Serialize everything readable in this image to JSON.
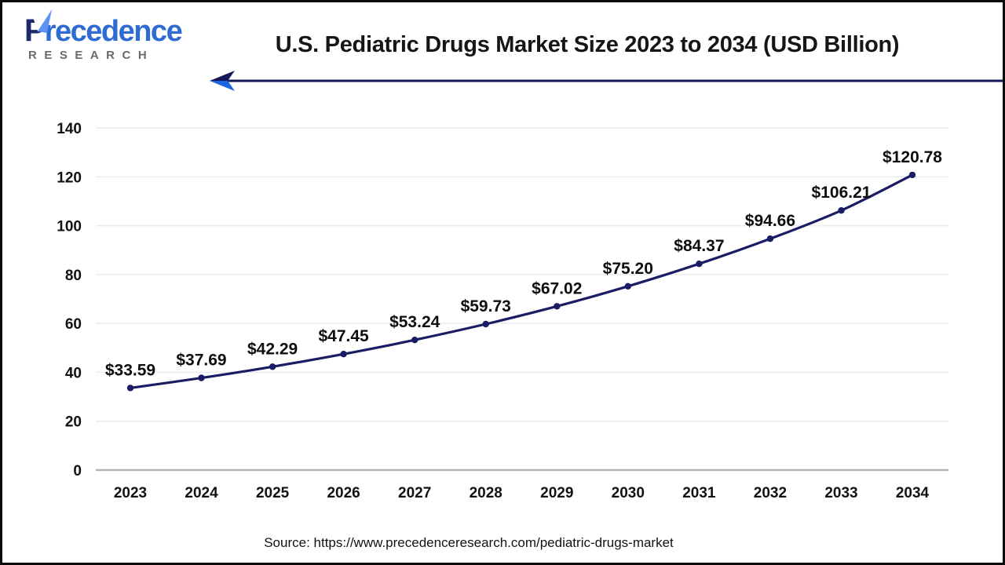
{
  "header": {
    "title": "U.S. Pediatric Drugs Market Size 2023 to 2034 (USD Billion)"
  },
  "logo": {
    "initial": "P",
    "rest": "recedence",
    "subtitle": "RESEARCH"
  },
  "footer": {
    "source": "Source: https://www.precedenceresearch.com/pediatric-drugs-market"
  },
  "colors": {
    "line": "#1a1c64",
    "grid": "#ececec",
    "axis": "#b3b3b3",
    "ink": "#121212",
    "arrow_navy": "#14175a",
    "arrow_blue": "#1b66e0",
    "logo_navy": "#1b2a6b",
    "logo_blue": "#2e6bd3",
    "logo_gray": "#6a6a6a"
  },
  "chart_data": {
    "type": "line",
    "title": "U.S. Pediatric Drugs Market Size 2023 to 2034 (USD Billion)",
    "categories": [
      "2023",
      "2024",
      "2025",
      "2026",
      "2027",
      "2028",
      "2029",
      "2030",
      "2031",
      "2032",
      "2033",
      "2034"
    ],
    "series": [
      {
        "name": "U.S. Pediatric Drugs Market Size (USD Billion)",
        "values": [
          33.59,
          37.69,
          42.29,
          47.45,
          53.24,
          59.73,
          67.02,
          75.2,
          84.37,
          94.66,
          106.21,
          120.78
        ]
      }
    ],
    "value_prefix": "$",
    "value_decimals": 2,
    "ylim": [
      0,
      140
    ],
    "ytick_step": 20,
    "grid": true,
    "legend": "none",
    "marker": "circle"
  }
}
